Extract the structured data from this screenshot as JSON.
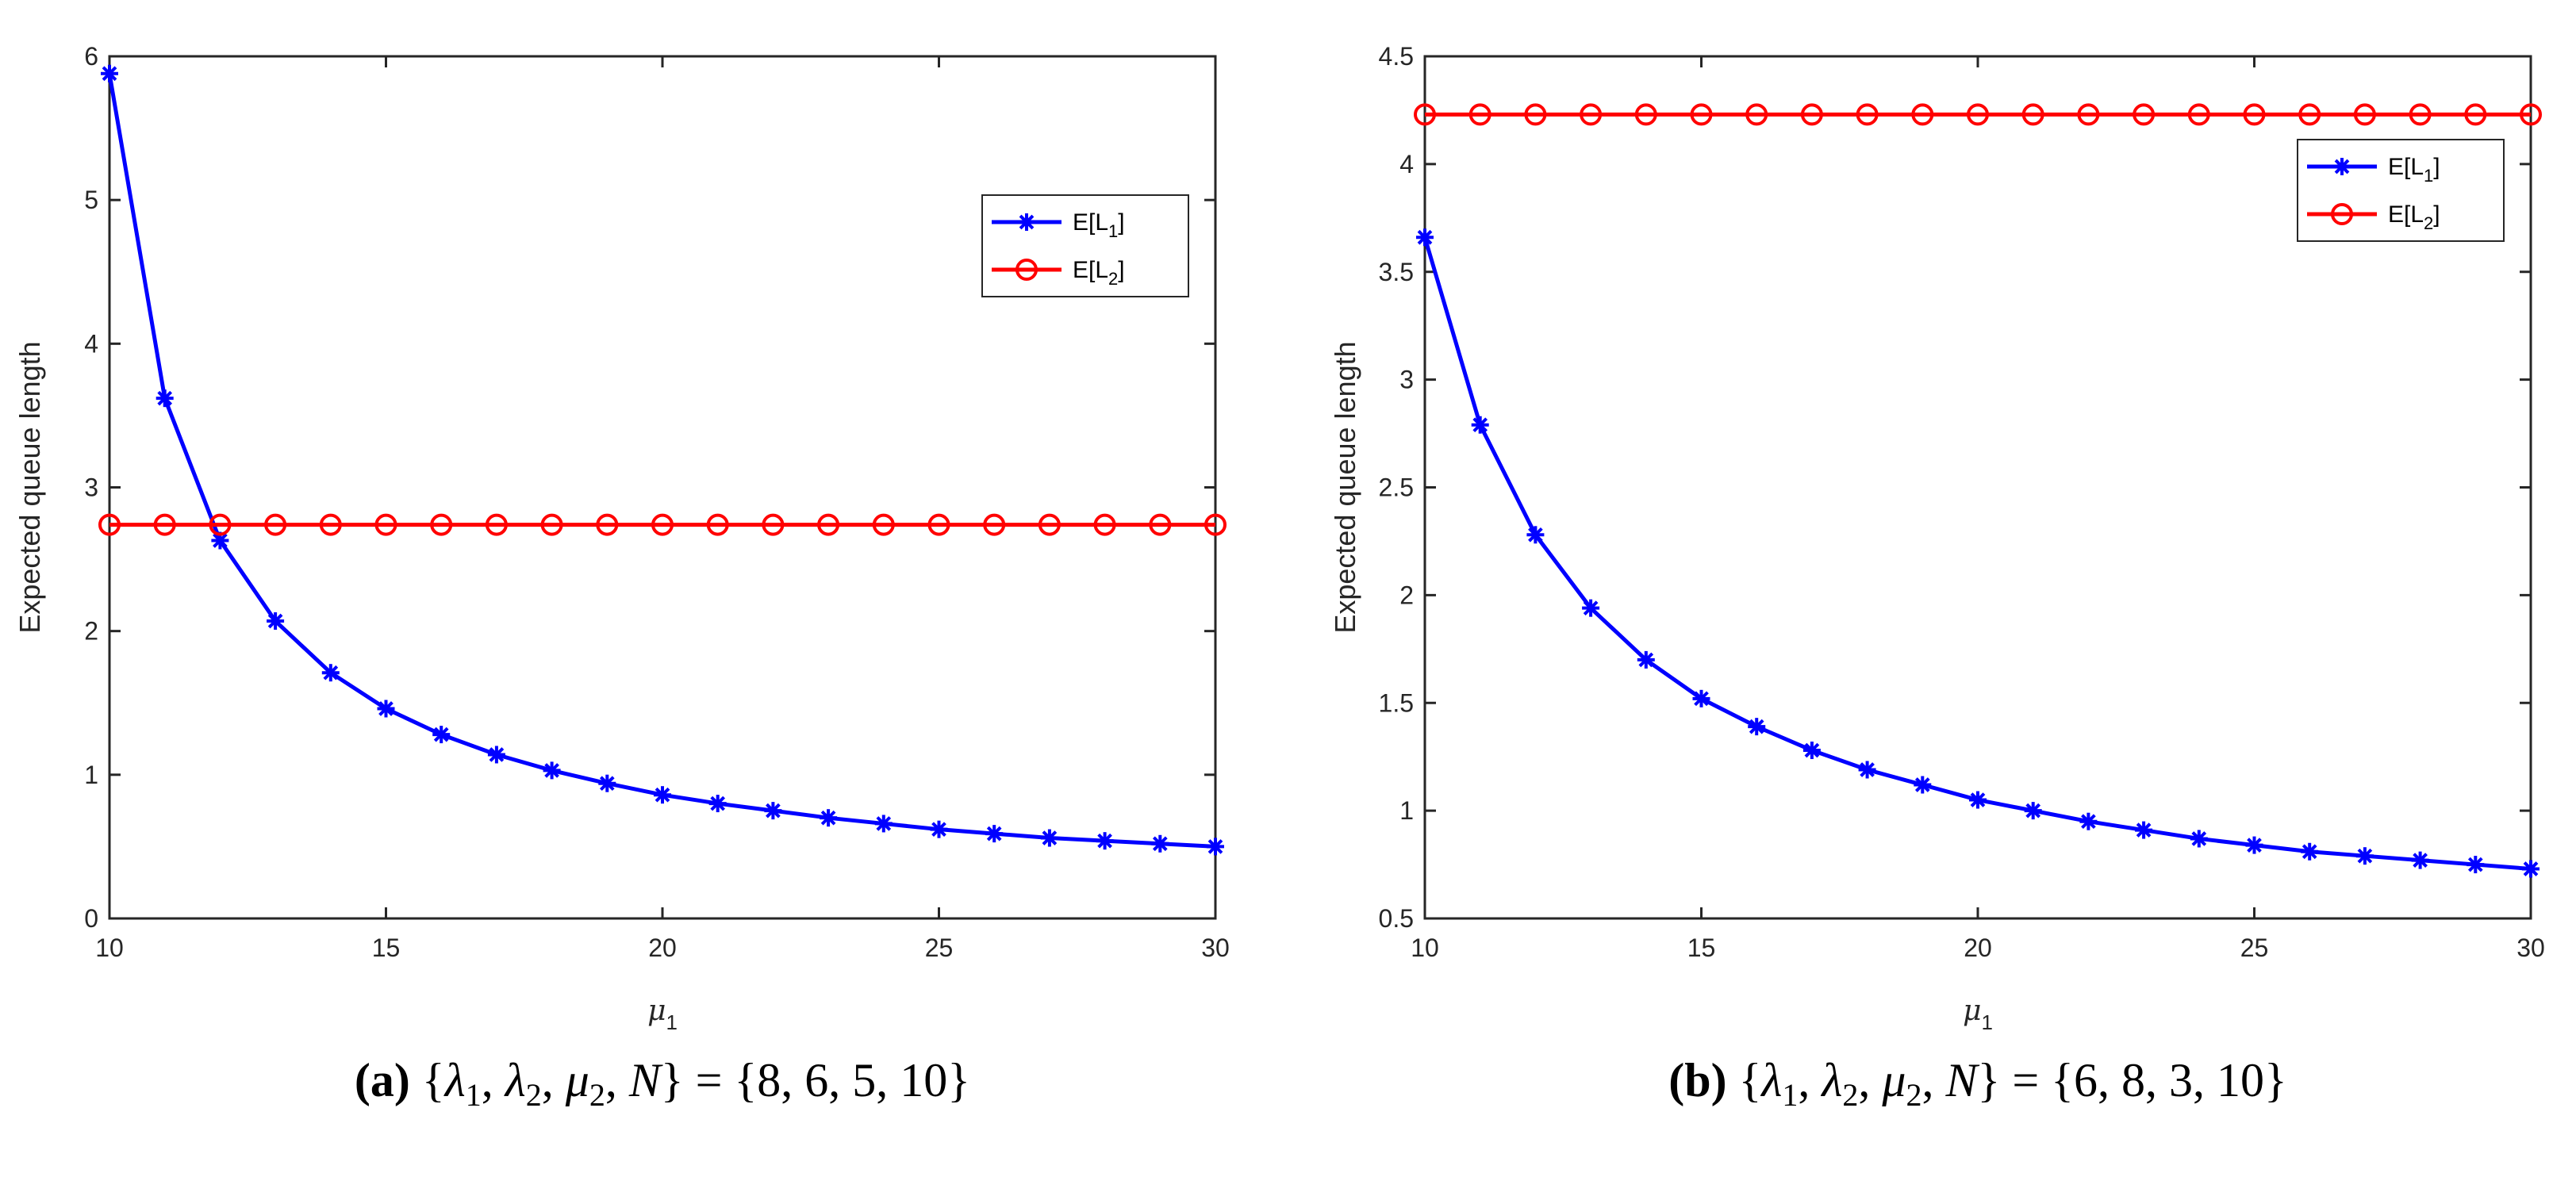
{
  "colors": {
    "series1": "#0000ff",
    "series2": "#ff0000",
    "axis": "#262626"
  },
  "chart_data": [
    {
      "type": "line",
      "panel": "a",
      "caption_tag": "(a)",
      "caption_formula": "{λ1, λ2, μ2, N} = {8, 6, 5, 10}",
      "caption_set": [
        "λ",
        "1",
        "λ",
        "2",
        "μ",
        "2",
        "N"
      ],
      "caption_values": "{8, 6, 5, 10}",
      "xlabel": "μ1",
      "xlabel_symbol": "μ",
      "xlabel_sub": "1",
      "ylabel": "Expected queue length",
      "xlim": [
        10,
        30
      ],
      "ylim": [
        0,
        6
      ],
      "xticks": [
        10,
        15,
        20,
        25,
        30
      ],
      "xtick_labels": [
        "10",
        "15",
        "20",
        "25",
        "30"
      ],
      "yticks": [
        0,
        1,
        2,
        3,
        4,
        5,
        6
      ],
      "ytick_labels": [
        "0",
        "1",
        "2",
        "3",
        "4",
        "5",
        "6"
      ],
      "legend_position": "upper-right",
      "x": [
        10,
        11,
        12,
        13,
        14,
        15,
        16,
        17,
        18,
        19,
        20,
        21,
        22,
        23,
        24,
        25,
        26,
        27,
        28,
        29,
        30
      ],
      "series": [
        {
          "name": "E[L1]",
          "legend_base": "E[L",
          "legend_sub": "1",
          "legend_close": "]",
          "marker": "asterisk",
          "color": "#0000ff",
          "values": [
            5.88,
            3.62,
            2.63,
            2.07,
            1.71,
            1.46,
            1.28,
            1.14,
            1.03,
            0.94,
            0.86,
            0.8,
            0.75,
            0.7,
            0.66,
            0.62,
            0.59,
            0.56,
            0.54,
            0.52,
            0.5
          ]
        },
        {
          "name": "E[L2]",
          "legend_base": "E[L",
          "legend_sub": "2",
          "legend_close": "]",
          "marker": "circle",
          "color": "#ff0000",
          "values": [
            2.74,
            2.74,
            2.74,
            2.74,
            2.74,
            2.74,
            2.74,
            2.74,
            2.74,
            2.74,
            2.74,
            2.74,
            2.74,
            2.74,
            2.74,
            2.74,
            2.74,
            2.74,
            2.74,
            2.74,
            2.74
          ]
        }
      ]
    },
    {
      "type": "line",
      "panel": "b",
      "caption_tag": "(b)",
      "caption_formula": "{λ1, λ2, μ2, N} = {6, 8, 3, 10}",
      "caption_set": [
        "λ",
        "1",
        "λ",
        "2",
        "μ",
        "2",
        "N"
      ],
      "caption_values": "{6, 8, 3, 10}",
      "xlabel": "μ1",
      "xlabel_symbol": "μ",
      "xlabel_sub": "1",
      "ylabel": "Expected queue length",
      "xlim": [
        10,
        30
      ],
      "ylim": [
        0.5,
        4.5
      ],
      "xticks": [
        10,
        15,
        20,
        25,
        30
      ],
      "xtick_labels": [
        "10",
        "15",
        "20",
        "25",
        "30"
      ],
      "yticks": [
        0.5,
        1,
        1.5,
        2,
        2.5,
        3,
        3.5,
        4,
        4.5
      ],
      "ytick_labels": [
        "0.5",
        "1",
        "1.5",
        "2",
        "2.5",
        "3",
        "3.5",
        "4",
        "4.5"
      ],
      "legend_position": "upper-right",
      "x": [
        10,
        11,
        12,
        13,
        14,
        15,
        16,
        17,
        18,
        19,
        20,
        21,
        22,
        23,
        24,
        25,
        26,
        27,
        28,
        29,
        30
      ],
      "series": [
        {
          "name": "E[L1]",
          "legend_base": "E[L",
          "legend_sub": "1",
          "legend_close": "]",
          "marker": "asterisk",
          "color": "#0000ff",
          "values": [
            3.66,
            2.79,
            2.28,
            1.94,
            1.7,
            1.52,
            1.39,
            1.28,
            1.19,
            1.12,
            1.05,
            1.0,
            0.95,
            0.91,
            0.87,
            0.84,
            0.81,
            0.79,
            0.77,
            0.75,
            0.73
          ]
        },
        {
          "name": "E[L2]",
          "legend_base": "E[L",
          "legend_sub": "2",
          "legend_close": "]",
          "marker": "circle",
          "color": "#ff0000",
          "values": [
            4.23,
            4.23,
            4.23,
            4.23,
            4.23,
            4.23,
            4.23,
            4.23,
            4.23,
            4.23,
            4.23,
            4.23,
            4.23,
            4.23,
            4.23,
            4.23,
            4.23,
            4.23,
            4.23,
            4.23,
            4.23
          ]
        }
      ]
    }
  ]
}
